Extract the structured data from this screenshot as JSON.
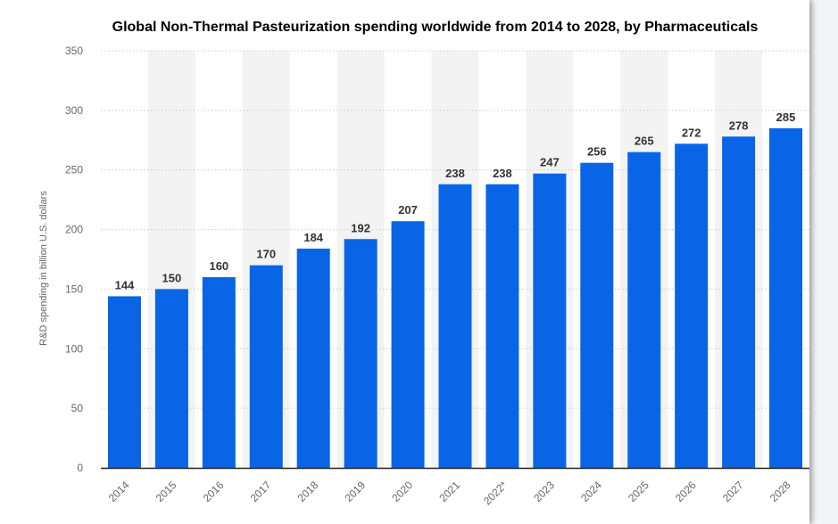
{
  "chart_data": {
    "type": "bar",
    "title": "Global Non-Thermal Pasteurization spending worldwide from 2014 to 2028, by Pharmaceuticals",
    "xlabel": "",
    "ylabel": "R&D spending in billion U.S. dollars",
    "categories": [
      "2014",
      "2015",
      "2016",
      "2017",
      "2018",
      "2019",
      "2020",
      "2021",
      "2022*",
      "2023",
      "2024",
      "2025",
      "2026",
      "2027",
      "2028"
    ],
    "values": [
      144,
      150,
      160,
      170,
      184,
      192,
      207,
      238,
      238,
      247,
      256,
      265,
      272,
      278,
      285
    ],
    "ylim": [
      0,
      350
    ],
    "yticks": [
      0,
      50,
      100,
      150,
      200,
      250,
      300,
      350
    ],
    "grid": true,
    "bar_color": "#0a64e6",
    "band_color": "#f3f3f3"
  }
}
